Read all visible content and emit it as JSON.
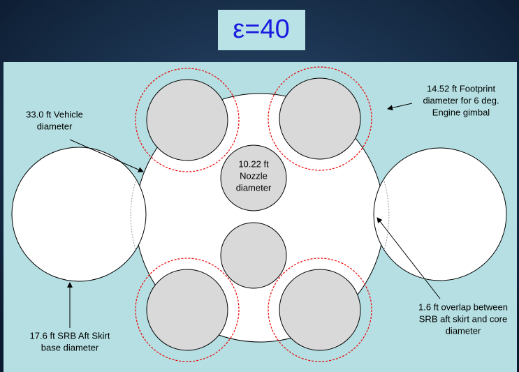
{
  "title": "ε=40",
  "labels": {
    "vehicle": [
      "33.0 ft Vehicle",
      "diameter"
    ],
    "footprint": [
      "14.52 ft Footprint",
      "diameter for 6 deg.",
      "Engine gimbal"
    ],
    "nozzle": [
      "10.22 ft",
      "Nozzle",
      "diameter"
    ],
    "srb": [
      "17.6 ft SRB Aft Skirt",
      "base diameter"
    ],
    "overlap": [
      "1.6 ft overlap between",
      "SRB aft skirt and core",
      "diameter"
    ]
  }
}
